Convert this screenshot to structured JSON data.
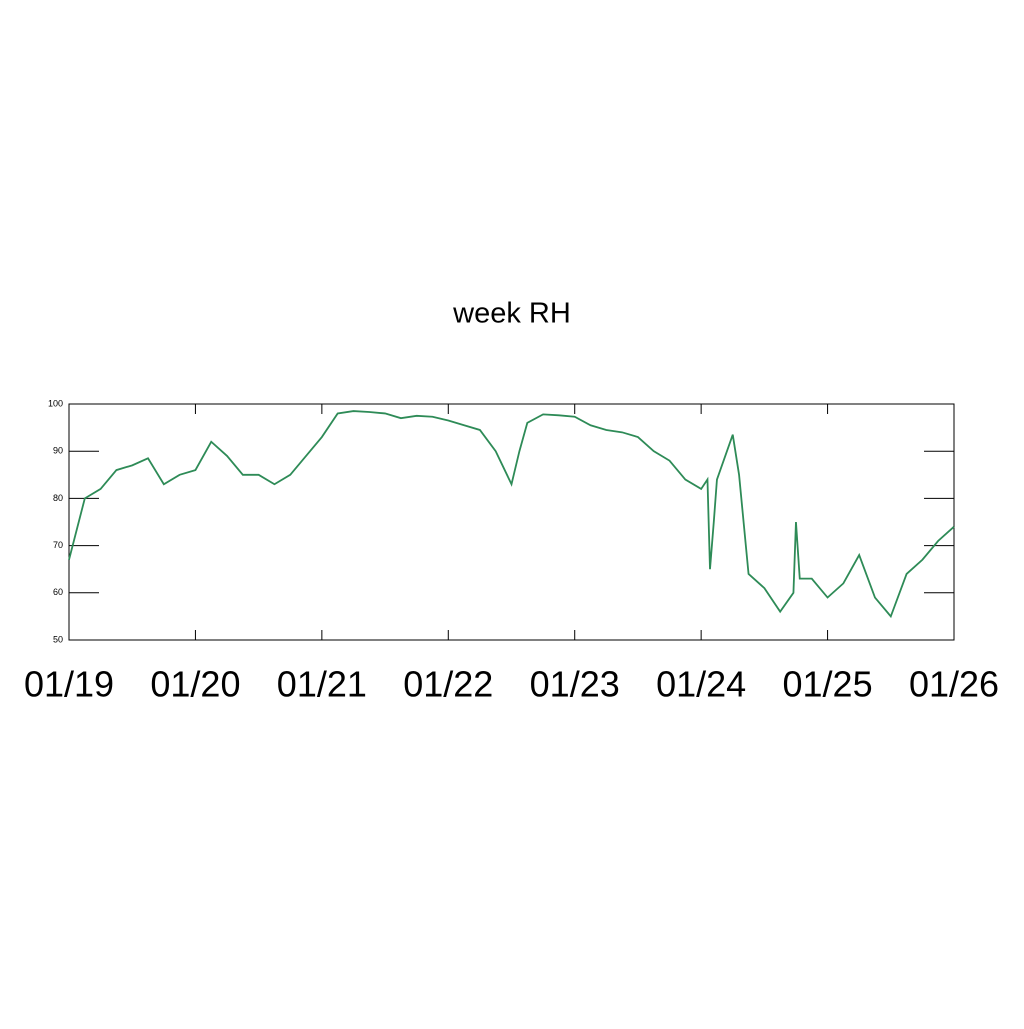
{
  "chart_data": {
    "type": "line",
    "title": "week RH",
    "x": [
      0,
      0.125,
      0.25,
      0.375,
      0.5,
      0.625,
      0.75,
      0.875,
      1.0,
      1.125,
      1.25,
      1.375,
      1.5,
      1.625,
      1.75,
      1.875,
      2.0,
      2.125,
      2.25,
      2.375,
      2.5,
      2.625,
      2.75,
      2.875,
      3.0,
      3.125,
      3.25,
      3.375,
      3.5,
      3.5625,
      3.625,
      3.75,
      3.875,
      4.0,
      4.125,
      4.25,
      4.375,
      4.5,
      4.625,
      4.75,
      4.875,
      5.0,
      5.05,
      5.07,
      5.1,
      5.125,
      5.25,
      5.3,
      5.375,
      5.5,
      5.625,
      5.73,
      5.75,
      5.78,
      5.875,
      6.0,
      6.125,
      6.25,
      6.375,
      6.5,
      6.625,
      6.75,
      6.875,
      7.0
    ],
    "series": [
      {
        "name": "RH",
        "color": "#2e8b57",
        "values": [
          67,
          80,
          82,
          86,
          87,
          88.5,
          83,
          85,
          86,
          92,
          89,
          85,
          85,
          83,
          85,
          89,
          93,
          98,
          98.5,
          98.3,
          98,
          97,
          97.5,
          97.3,
          96.5,
          95.5,
          94.5,
          90,
          83,
          90,
          96,
          97.8,
          97.6,
          97.3,
          95.5,
          94.5,
          94,
          93,
          90,
          88,
          84,
          82,
          84,
          65,
          75,
          84,
          93.5,
          85,
          64,
          61,
          56,
          60,
          75,
          63,
          63,
          59,
          62,
          68,
          59,
          55,
          64,
          67,
          71,
          74
        ]
      }
    ],
    "xlim": [
      0,
      7
    ],
    "xticks": [
      {
        "value": 0,
        "label": "01/19"
      },
      {
        "value": 1,
        "label": "01/20"
      },
      {
        "value": 2,
        "label": "01/21"
      },
      {
        "value": 3,
        "label": "01/22"
      },
      {
        "value": 4,
        "label": "01/23"
      },
      {
        "value": 5,
        "label": "01/24"
      },
      {
        "value": 6,
        "label": "01/25"
      },
      {
        "value": 7,
        "label": "01/26"
      }
    ],
    "ylim": [
      50,
      100
    ],
    "yticks": [
      50,
      60,
      70,
      80,
      90,
      100
    ]
  }
}
